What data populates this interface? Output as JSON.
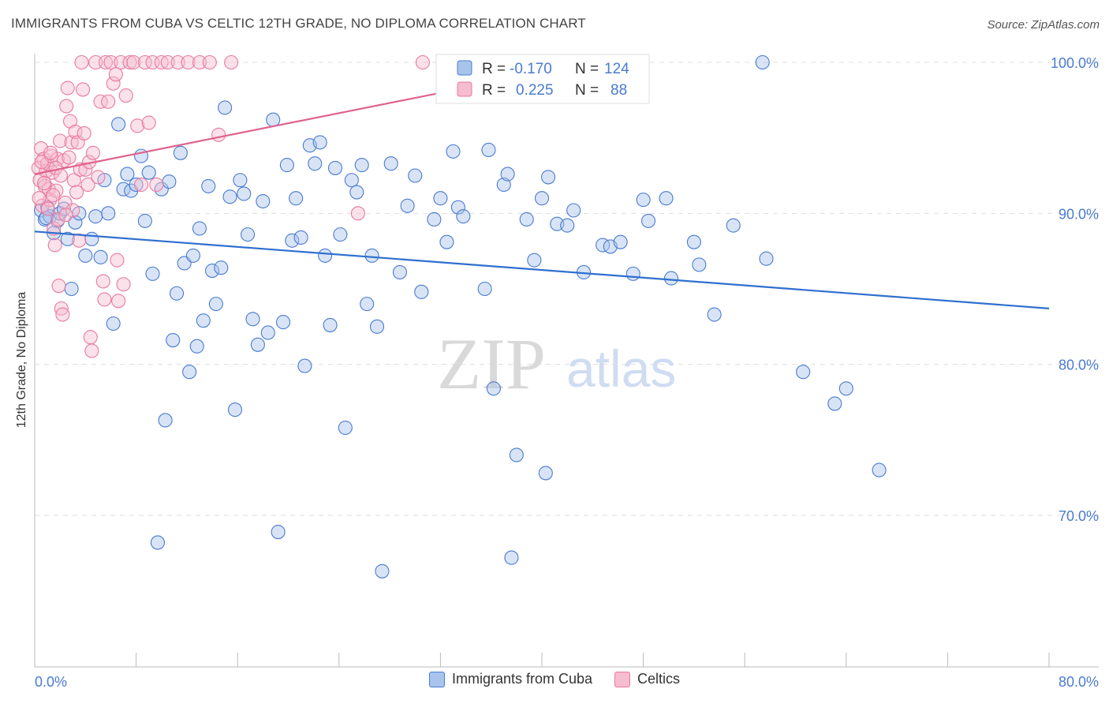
{
  "header": {
    "title": "IMMIGRANTS FROM CUBA VS CELTIC 12TH GRADE, NO DIPLOMA CORRELATION CHART",
    "source": "Source: ZipAtlas.com"
  },
  "watermark": {
    "zip": "ZIP",
    "atlas": "atlas"
  },
  "colors": {
    "blue": "#4a7bd0",
    "blue_fill": "#a9c4ec",
    "blue_line": "#2f6fcf",
    "pink": "#e87aa0",
    "pink_fill": "#f6bccf",
    "pink_line": "#e0628f",
    "grid": "#dddddd",
    "tick_text": "#4a7bd0"
  },
  "legend_top": {
    "rows": [
      {
        "r_label": "R =",
        "r_value": "-0.170",
        "n_label": "N =",
        "n_value": "124"
      },
      {
        "r_label": "R =",
        "r_value": "0.225",
        "n_label": "N =",
        "n_value": "88"
      }
    ]
  },
  "legend_bottom": {
    "items": [
      {
        "label": "Immigrants from Cuba",
        "color": "#a9c4ec"
      },
      {
        "label": "Celtics",
        "color": "#f6bccf"
      }
    ]
  },
  "chart_data": {
    "type": "scatter",
    "title": "IMMIGRANTS FROM CUBA VS CELTIC 12TH GRADE, NO DIPLOMA CORRELATION CHART",
    "xlabel": "",
    "ylabel": "12th Grade, No Diploma",
    "xlim": [
      0,
      80
    ],
    "ylim": [
      61,
      103
    ],
    "x_tick_labels": [
      "0.0%",
      "80.0%"
    ],
    "y_ticks": [
      70,
      80,
      90,
      100
    ],
    "y_tick_labels": [
      "70.0%",
      "80.0%",
      "90.0%",
      "100.0%"
    ],
    "grid": true,
    "legend": "top-center",
    "series": [
      {
        "name": "Immigrants from Cuba",
        "color": "#a9c4ec",
        "r": -0.17,
        "n": 124,
        "trend": {
          "x": [
            0,
            80
          ],
          "y": [
            88.8,
            83.7
          ]
        },
        "points": [
          [
            0.5,
            90.2
          ],
          [
            0.8,
            89.6
          ],
          [
            1.0,
            90.4
          ],
          [
            1.2,
            89.8
          ],
          [
            1.5,
            88.7
          ],
          [
            1.8,
            89.5
          ],
          [
            2.0,
            90.0
          ],
          [
            2.3,
            90.3
          ],
          [
            2.6,
            88.3
          ],
          [
            2.9,
            85.0
          ],
          [
            3.2,
            89.4
          ],
          [
            3.5,
            90.0
          ],
          [
            4.0,
            87.2
          ],
          [
            4.5,
            88.3
          ],
          [
            4.8,
            89.8
          ],
          [
            5.2,
            87.1
          ],
          [
            5.5,
            92.2
          ],
          [
            5.8,
            90.0
          ],
          [
            6.2,
            82.7
          ],
          [
            6.6,
            95.9
          ],
          [
            7.0,
            91.6
          ],
          [
            7.3,
            92.6
          ],
          [
            7.6,
            91.5
          ],
          [
            8.0,
            91.9
          ],
          [
            8.4,
            93.8
          ],
          [
            8.7,
            89.5
          ],
          [
            9.0,
            92.7
          ],
          [
            9.3,
            86.0
          ],
          [
            9.7,
            68.2
          ],
          [
            10.0,
            91.6
          ],
          [
            10.3,
            76.3
          ],
          [
            10.6,
            92.1
          ],
          [
            10.9,
            81.6
          ],
          [
            11.2,
            84.7
          ],
          [
            11.5,
            94.0
          ],
          [
            11.8,
            86.7
          ],
          [
            12.2,
            79.5
          ],
          [
            12.5,
            87.2
          ],
          [
            12.8,
            81.2
          ],
          [
            13.0,
            89.0
          ],
          [
            13.3,
            82.9
          ],
          [
            13.7,
            91.8
          ],
          [
            14.0,
            86.2
          ],
          [
            14.3,
            84.0
          ],
          [
            14.7,
            86.4
          ],
          [
            15.0,
            97.0
          ],
          [
            15.4,
            91.1
          ],
          [
            15.8,
            77.0
          ],
          [
            16.2,
            92.2
          ],
          [
            16.5,
            91.3
          ],
          [
            16.8,
            88.6
          ],
          [
            17.2,
            83.0
          ],
          [
            17.6,
            81.3
          ],
          [
            18.0,
            90.8
          ],
          [
            18.4,
            82.1
          ],
          [
            18.8,
            96.2
          ],
          [
            19.2,
            68.9
          ],
          [
            19.6,
            82.8
          ],
          [
            19.9,
            93.2
          ],
          [
            20.3,
            88.2
          ],
          [
            20.6,
            91.0
          ],
          [
            21.0,
            88.4
          ],
          [
            21.3,
            79.9
          ],
          [
            21.7,
            94.5
          ],
          [
            22.1,
            93.3
          ],
          [
            22.5,
            94.7
          ],
          [
            22.9,
            87.2
          ],
          [
            23.3,
            82.6
          ],
          [
            23.7,
            93.0
          ],
          [
            24.1,
            88.6
          ],
          [
            24.5,
            75.8
          ],
          [
            25.0,
            92.2
          ],
          [
            25.4,
            91.4
          ],
          [
            25.8,
            93.2
          ],
          [
            26.2,
            84.0
          ],
          [
            26.6,
            87.2
          ],
          [
            27.0,
            82.5
          ],
          [
            27.4,
            66.3
          ],
          [
            28.1,
            93.3
          ],
          [
            28.8,
            86.1
          ],
          [
            29.4,
            90.5
          ],
          [
            30.0,
            92.5
          ],
          [
            30.5,
            84.8
          ],
          [
            31.5,
            89.6
          ],
          [
            32.0,
            91.0
          ],
          [
            32.5,
            88.1
          ],
          [
            33.0,
            94.1
          ],
          [
            33.4,
            90.4
          ],
          [
            33.8,
            89.8
          ],
          [
            35.5,
            85.0
          ],
          [
            35.8,
            94.2
          ],
          [
            36.2,
            78.4
          ],
          [
            37.0,
            91.9
          ],
          [
            37.3,
            92.6
          ],
          [
            37.6,
            67.2
          ],
          [
            38.0,
            74.0
          ],
          [
            38.8,
            89.6
          ],
          [
            39.4,
            86.9
          ],
          [
            40.0,
            91.0
          ],
          [
            40.3,
            72.8
          ],
          [
            40.5,
            92.4
          ],
          [
            41.2,
            89.3
          ],
          [
            42.0,
            89.2
          ],
          [
            42.5,
            90.2
          ],
          [
            43.3,
            86.1
          ],
          [
            44.8,
            87.9
          ],
          [
            45.4,
            87.8
          ],
          [
            46.2,
            88.1
          ],
          [
            47.2,
            86.0
          ],
          [
            48.0,
            90.9
          ],
          [
            48.4,
            89.5
          ],
          [
            49.8,
            91.0
          ],
          [
            50.2,
            85.7
          ],
          [
            52.0,
            88.1
          ],
          [
            52.4,
            86.6
          ],
          [
            53.6,
            83.3
          ],
          [
            55.1,
            89.2
          ],
          [
            57.4,
            100.0
          ],
          [
            57.7,
            87.0
          ],
          [
            60.6,
            79.5
          ],
          [
            63.1,
            77.4
          ],
          [
            64.0,
            78.4
          ],
          [
            66.6,
            73.0
          ],
          [
            0.9,
            89.7
          ]
        ]
      },
      {
        "name": "Celtics",
        "color": "#f6bccf",
        "r": 0.225,
        "n": 88,
        "trend": {
          "x": [
            0,
            44
          ],
          "y": [
            92.6,
            100.0
          ]
        },
        "points": [
          [
            0.3,
            93.0
          ],
          [
            0.4,
            92.2
          ],
          [
            0.5,
            94.3
          ],
          [
            0.6,
            90.5
          ],
          [
            0.7,
            93.6
          ],
          [
            0.8,
            91.8
          ],
          [
            0.9,
            92.8
          ],
          [
            1.0,
            93.3
          ],
          [
            1.1,
            91.6
          ],
          [
            1.2,
            90.9
          ],
          [
            1.3,
            93.8
          ],
          [
            1.4,
            92.7
          ],
          [
            1.5,
            89.0
          ],
          [
            1.6,
            87.9
          ],
          [
            1.7,
            91.5
          ],
          [
            1.8,
            93.6
          ],
          [
            1.9,
            85.2
          ],
          [
            2.0,
            94.8
          ],
          [
            2.1,
            83.7
          ],
          [
            2.2,
            83.3
          ],
          [
            2.3,
            93.5
          ],
          [
            2.4,
            90.7
          ],
          [
            2.5,
            97.1
          ],
          [
            2.6,
            98.3
          ],
          [
            2.7,
            93.7
          ],
          [
            2.8,
            96.1
          ],
          [
            2.9,
            94.7
          ],
          [
            3.0,
            90.2
          ],
          [
            3.1,
            92.2
          ],
          [
            3.2,
            95.4
          ],
          [
            3.3,
            91.4
          ],
          [
            3.4,
            94.7
          ],
          [
            3.5,
            88.2
          ],
          [
            3.6,
            92.9
          ],
          [
            3.7,
            100.0
          ],
          [
            3.8,
            98.2
          ],
          [
            3.9,
            95.3
          ],
          [
            4.0,
            92.9
          ],
          [
            4.2,
            91.9
          ],
          [
            4.3,
            93.4
          ],
          [
            4.4,
            81.8
          ],
          [
            4.5,
            80.9
          ],
          [
            4.6,
            94.0
          ],
          [
            4.8,
            100.0
          ],
          [
            5.0,
            92.4
          ],
          [
            5.2,
            97.4
          ],
          [
            5.4,
            85.5
          ],
          [
            5.5,
            84.3
          ],
          [
            5.6,
            100.0
          ],
          [
            5.8,
            97.4
          ],
          [
            6.0,
            100.0
          ],
          [
            6.2,
            98.6
          ],
          [
            6.4,
            99.2
          ],
          [
            6.5,
            86.9
          ],
          [
            6.6,
            84.2
          ],
          [
            6.8,
            100.0
          ],
          [
            7.0,
            85.3
          ],
          [
            7.2,
            97.8
          ],
          [
            7.5,
            100.0
          ],
          [
            7.8,
            100.0
          ],
          [
            8.1,
            95.8
          ],
          [
            8.4,
            91.9
          ],
          [
            8.7,
            100.0
          ],
          [
            9.0,
            96.0
          ],
          [
            9.3,
            100.0
          ],
          [
            9.6,
            91.9
          ],
          [
            10.0,
            100.0
          ],
          [
            10.5,
            100.0
          ],
          [
            11.3,
            100.0
          ],
          [
            12.1,
            100.0
          ],
          [
            13.0,
            100.0
          ],
          [
            13.8,
            100.0
          ],
          [
            14.5,
            95.2
          ],
          [
            15.5,
            100.0
          ],
          [
            25.5,
            90.0
          ],
          [
            30.6,
            100.0
          ],
          [
            35.8,
            100.0
          ],
          [
            41.4,
            100.0
          ],
          [
            44.4,
            100.0
          ],
          [
            0.35,
            91.0
          ],
          [
            0.55,
            93.4
          ],
          [
            0.75,
            92.0
          ],
          [
            1.05,
            90.3
          ],
          [
            1.25,
            94.0
          ],
          [
            1.45,
            91.2
          ],
          [
            1.65,
            93.0
          ],
          [
            1.85,
            89.6
          ],
          [
            2.05,
            92.5
          ],
          [
            2.45,
            89.9
          ]
        ]
      }
    ]
  }
}
